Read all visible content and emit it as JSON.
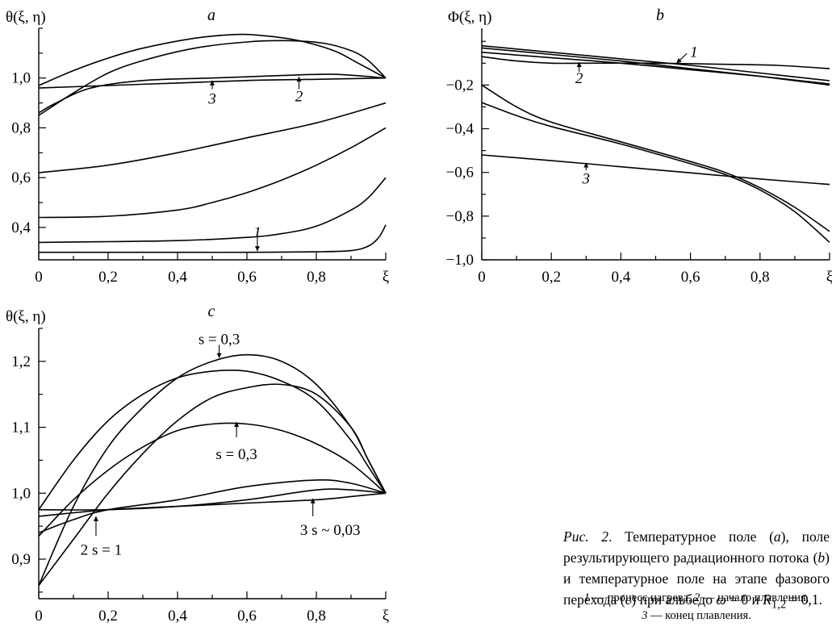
{
  "chart_data": [
    {
      "panel": "a",
      "type": "line",
      "ylabel": "θ(ξ, η)",
      "xlabel": "ξ",
      "xlim": [
        0,
        1
      ],
      "ylim": [
        0.27,
        1.2
      ],
      "x_ticks": [
        "0",
        "0,2",
        "0,4",
        "0,6",
        "0,8",
        "ξ"
      ],
      "y_ticks": [
        {
          "v": 0.4,
          "label": "0,4"
        },
        {
          "v": 0.6,
          "label": "0,6"
        },
        {
          "v": 0.8,
          "label": "0,8"
        },
        {
          "v": 1.0,
          "label": "1,0"
        }
      ],
      "series": [
        {
          "points": [
            [
              0,
              0.3
            ],
            [
              0.2,
              0.3
            ],
            [
              0.4,
              0.3
            ],
            [
              0.6,
              0.3
            ],
            [
              0.8,
              0.302
            ],
            [
              0.9,
              0.307
            ],
            [
              0.95,
              0.325
            ],
            [
              0.98,
              0.36
            ],
            [
              1.0,
              0.41
            ]
          ]
        },
        {
          "points": [
            [
              0,
              0.34
            ],
            [
              0.2,
              0.343
            ],
            [
              0.4,
              0.347
            ],
            [
              0.6,
              0.36
            ],
            [
              0.7,
              0.375
            ],
            [
              0.8,
              0.405
            ],
            [
              0.9,
              0.47
            ],
            [
              0.95,
              0.52
            ],
            [
              1.0,
              0.6
            ]
          ]
        },
        {
          "points": [
            [
              0,
              0.44
            ],
            [
              0.2,
              0.445
            ],
            [
              0.4,
              0.47
            ],
            [
              0.5,
              0.5
            ],
            [
              0.6,
              0.54
            ],
            [
              0.7,
              0.59
            ],
            [
              0.8,
              0.65
            ],
            [
              0.9,
              0.72
            ],
            [
              1.0,
              0.8
            ]
          ]
        },
        {
          "points": [
            [
              0,
              0.62
            ],
            [
              0.2,
              0.65
            ],
            [
              0.4,
              0.7
            ],
            [
              0.6,
              0.76
            ],
            [
              0.8,
              0.82
            ],
            [
              1.0,
              0.9
            ]
          ]
        },
        {
          "points": [
            [
              0,
              0.96
            ],
            [
              0.2,
              0.97
            ],
            [
              0.4,
              0.98
            ],
            [
              0.6,
              0.99
            ],
            [
              0.8,
              0.995
            ],
            [
              1.0,
              1.0
            ]
          ]
        },
        {
          "points": [
            [
              0,
              0.86
            ],
            [
              0.05,
              0.9
            ],
            [
              0.15,
              0.96
            ],
            [
              0.3,
              0.99
            ],
            [
              0.5,
              1.0
            ],
            [
              0.7,
              1.01
            ],
            [
              0.85,
              1.015
            ],
            [
              1.0,
              1.0
            ]
          ]
        },
        {
          "points": [
            [
              0,
              0.85
            ],
            [
              0.1,
              0.94
            ],
            [
              0.2,
              1.02
            ],
            [
              0.3,
              1.07
            ],
            [
              0.45,
              1.12
            ],
            [
              0.6,
              1.145
            ],
            [
              0.72,
              1.15
            ],
            [
              0.82,
              1.14
            ],
            [
              0.9,
              1.11
            ],
            [
              0.95,
              1.07
            ],
            [
              1.0,
              1.0
            ]
          ]
        },
        {
          "points": [
            [
              0,
              0.97
            ],
            [
              0.1,
              1.03
            ],
            [
              0.2,
              1.08
            ],
            [
              0.3,
              1.12
            ],
            [
              0.45,
              1.16
            ],
            [
              0.57,
              1.175
            ],
            [
              0.65,
              1.17
            ],
            [
              0.75,
              1.15
            ],
            [
              0.85,
              1.11
            ],
            [
              0.92,
              1.06
            ],
            [
              1.0,
              1.0
            ]
          ]
        }
      ],
      "annotations": [
        {
          "text": "1",
          "italic": true,
          "at": [
            0.63,
            0.38
          ]
        },
        {
          "text": "2",
          "italic": true,
          "at": [
            0.75,
            0.93
          ]
        },
        {
          "text": "3",
          "italic": true,
          "at": [
            0.5,
            0.92
          ]
        }
      ]
    },
    {
      "panel": "b",
      "type": "line",
      "ylabel": "Φ(ξ, η)",
      "xlabel": "ξ",
      "xlim": [
        0,
        1
      ],
      "ylim": [
        -1.0,
        0.06
      ],
      "x_ticks": [
        "0",
        "0,2",
        "0,4",
        "0,6",
        "0,8",
        "ξ"
      ],
      "y_ticks": [
        {
          "v": -1.0,
          "label": "−1,0"
        },
        {
          "v": -0.8,
          "label": "−0,8"
        },
        {
          "v": -0.6,
          "label": "−0,6"
        },
        {
          "v": -0.4,
          "label": "−0,4"
        },
        {
          "v": -0.2,
          "label": "−0,2"
        }
      ],
      "series": [
        {
          "points": [
            [
              0,
              -0.02
            ],
            [
              0.2,
              -0.05
            ],
            [
              0.4,
              -0.08
            ],
            [
              0.6,
              -0.11
            ],
            [
              0.8,
              -0.145
            ],
            [
              1.0,
              -0.18
            ]
          ]
        },
        {
          "points": [
            [
              0,
              -0.03
            ],
            [
              0.2,
              -0.06
            ],
            [
              0.4,
              -0.09
            ],
            [
              0.6,
              -0.125
            ],
            [
              0.8,
              -0.16
            ],
            [
              1.0,
              -0.2
            ]
          ]
        },
        {
          "points": [
            [
              0,
              -0.05
            ],
            [
              0.2,
              -0.075
            ],
            [
              0.4,
              -0.1
            ],
            [
              0.6,
              -0.13
            ],
            [
              0.8,
              -0.16
            ],
            [
              1.0,
              -0.195
            ]
          ]
        },
        {
          "points": [
            [
              0,
              -0.07
            ],
            [
              0.1,
              -0.09
            ],
            [
              0.2,
              -0.1
            ],
            [
              0.3,
              -0.1
            ],
            [
              0.5,
              -0.1
            ],
            [
              0.7,
              -0.105
            ],
            [
              0.85,
              -0.11
            ],
            [
              1.0,
              -0.125
            ]
          ]
        },
        {
          "points": [
            [
              0,
              -0.52
            ],
            [
              0.2,
              -0.546
            ],
            [
              0.4,
              -0.574
            ],
            [
              0.6,
              -0.602
            ],
            [
              0.8,
              -0.63
            ],
            [
              1.0,
              -0.655
            ]
          ]
        },
        {
          "points": [
            [
              0,
              -0.2
            ],
            [
              0.1,
              -0.3
            ],
            [
              0.2,
              -0.37
            ],
            [
              0.4,
              -0.46
            ],
            [
              0.6,
              -0.55
            ],
            [
              0.7,
              -0.6
            ],
            [
              0.8,
              -0.67
            ],
            [
              0.9,
              -0.76
            ],
            [
              1.0,
              -0.87
            ]
          ]
        },
        {
          "points": [
            [
              0,
              -0.28
            ],
            [
              0.1,
              -0.34
            ],
            [
              0.2,
              -0.39
            ],
            [
              0.4,
              -0.47
            ],
            [
              0.6,
              -0.56
            ],
            [
              0.7,
              -0.61
            ],
            [
              0.8,
              -0.68
            ],
            [
              0.9,
              -0.78
            ],
            [
              1.0,
              -0.92
            ]
          ]
        }
      ],
      "annotations": [
        {
          "text": "1",
          "italic": true,
          "at": [
            0.55,
            -0.08
          ]
        },
        {
          "text": "2",
          "italic": true,
          "at": [
            0.28,
            -0.14
          ]
        },
        {
          "text": "3",
          "italic": true,
          "at": [
            0.3,
            -0.59
          ]
        }
      ]
    },
    {
      "panel": "c",
      "type": "line",
      "ylabel": "θ(ξ, η)",
      "xlabel": "ξ",
      "xlim": [
        0,
        1
      ],
      "ylim": [
        0.84,
        1.25
      ],
      "x_ticks": [
        "0",
        "0,2",
        "0,4",
        "0,6",
        "0,8",
        "ξ"
      ],
      "y_ticks": [
        {
          "v": 0.9,
          "label": "0,9"
        },
        {
          "v": 1.0,
          "label": "1,0"
        },
        {
          "v": 1.1,
          "label": "1,1"
        },
        {
          "v": 1.2,
          "label": "1,2"
        }
      ],
      "series": [
        {
          "points": [
            [
              0,
              0.86
            ],
            [
              0.1,
              0.98
            ],
            [
              0.2,
              1.07
            ],
            [
              0.3,
              1.13
            ],
            [
              0.4,
              1.175
            ],
            [
              0.5,
              1.2
            ],
            [
              0.6,
              1.21
            ],
            [
              0.7,
              1.2
            ],
            [
              0.8,
              1.165
            ],
            [
              0.9,
              1.1
            ],
            [
              0.95,
              1.05
            ],
            [
              1.0,
              1.0
            ]
          ]
        },
        {
          "points": [
            [
              0,
              0.975
            ],
            [
              0.1,
              1.05
            ],
            [
              0.2,
              1.11
            ],
            [
              0.3,
              1.15
            ],
            [
              0.4,
              1.175
            ],
            [
              0.5,
              1.185
            ],
            [
              0.6,
              1.185
            ],
            [
              0.7,
              1.17
            ],
            [
              0.8,
              1.14
            ],
            [
              0.9,
              1.08
            ],
            [
              0.95,
              1.04
            ],
            [
              1.0,
              1.0
            ]
          ]
        },
        {
          "points": [
            [
              0,
              0.86
            ],
            [
              0.1,
              0.93
            ],
            [
              0.2,
              1.0
            ],
            [
              0.3,
              1.06
            ],
            [
              0.4,
              1.11
            ],
            [
              0.5,
              1.145
            ],
            [
              0.6,
              1.16
            ],
            [
              0.7,
              1.165
            ],
            [
              0.8,
              1.15
            ],
            [
              0.9,
              1.1
            ],
            [
              0.95,
              1.05
            ],
            [
              1.0,
              1.0
            ]
          ]
        },
        {
          "points": [
            [
              0,
              0.935
            ],
            [
              0.1,
              0.99
            ],
            [
              0.2,
              1.035
            ],
            [
              0.3,
              1.07
            ],
            [
              0.4,
              1.095
            ],
            [
              0.5,
              1.105
            ],
            [
              0.6,
              1.105
            ],
            [
              0.7,
              1.095
            ],
            [
              0.8,
              1.075
            ],
            [
              0.9,
              1.045
            ],
            [
              1.0,
              1.0
            ]
          ]
        },
        {
          "points": [
            [
              0,
              0.94
            ],
            [
              0.1,
              0.96
            ],
            [
              0.2,
              0.975
            ],
            [
              0.4,
              0.99
            ],
            [
              0.6,
              1.01
            ],
            [
              0.8,
              1.02
            ],
            [
              0.9,
              1.015
            ],
            [
              1.0,
              1.0
            ]
          ]
        },
        {
          "points": [
            [
              0,
              0.975
            ],
            [
              0.2,
              0.975
            ],
            [
              0.4,
              0.98
            ],
            [
              0.6,
              0.99
            ],
            [
              0.8,
              1.005
            ],
            [
              0.9,
              1.005
            ],
            [
              1.0,
              1.0
            ]
          ]
        },
        {
          "points": [
            [
              0,
              0.965
            ],
            [
              0.2,
              0.975
            ],
            [
              0.4,
              0.98
            ],
            [
              0.6,
              0.985
            ],
            [
              0.8,
              0.99
            ],
            [
              0.9,
              0.995
            ],
            [
              1.0,
              1.0
            ]
          ]
        }
      ],
      "annotations": [
        {
          "text": "s = 0,3",
          "at": [
            0.52,
            1.225
          ]
        },
        {
          "text": "s = 0,3",
          "at": [
            0.57,
            1.07
          ]
        },
        {
          "text": "2 s = 1",
          "at": [
            0.16,
            0.925
          ]
        },
        {
          "text": "3 s ~ 0,03",
          "at": [
            0.82,
            0.955
          ]
        }
      ]
    }
  ],
  "caption": {
    "label": "Рис. 2",
    "text_1": ". Температурное поле (",
    "a": "a",
    "text_2": "), поле результирующего радиационного потока (",
    "b": "b",
    "text_3": ") и температурное поле на этапе фазового перехода (",
    "c": "c",
    "text_4": ") при альбедо ",
    "omega": "ω",
    "text_5": " = 0 и ",
    "R": "R",
    "R_sub": "1,2",
    "text_6": " = 0,1.",
    "legend_1_num": "1",
    "legend_1": " — процесс нагрева, ",
    "legend_2_num": "2",
    "legend_2": " — начало плавления,",
    "legend_3_num": "3",
    "legend_3": " — конец плавления."
  }
}
